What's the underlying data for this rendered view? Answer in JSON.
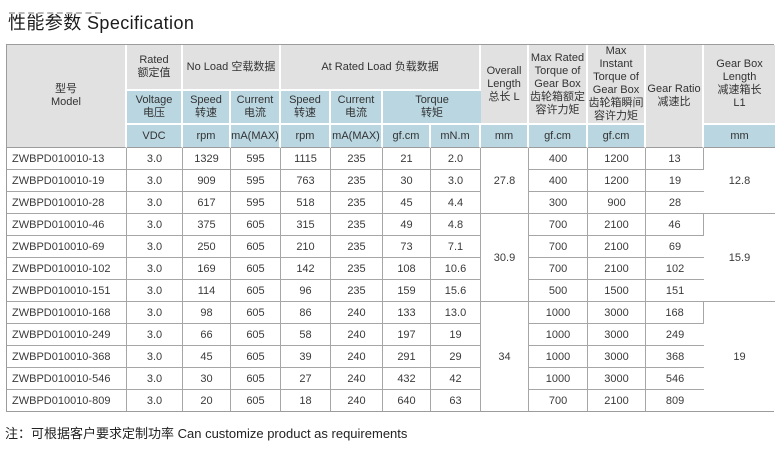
{
  "title": "性能参数 Specification",
  "note": "注：可根据客户要求定制功率  Can customize product as requirements",
  "colors": {
    "header_gray": "#e1e1e1",
    "header_blue": "#b9d6e1",
    "grid_line": "#a6a6a6"
  },
  "table": {
    "header": {
      "model": "型号\nModel",
      "rated": "Rated\n额定值",
      "no_load": "No Load 空载数据",
      "at_rated_load": "At Rated Load 负载数据",
      "voltage": "Voltage\n电压",
      "speed": "Speed\n转速",
      "current": "Current\n电流",
      "torque": "Torque\n转矩",
      "overall_length": "Overall\nLength\n总长 L",
      "max_rated_torque": "Max Rated\nTorque of\nGear Box\n齿轮箱额定\n容许力矩",
      "max_instant_torque": "Max Instant\nTorque of\nGear Box\n齿轮箱瞬间\n容许力矩",
      "gear_ratio": "Gear Ratio\n减速比",
      "gear_box_length": "Gear Box\nLength\n减速箱长\nL1",
      "units": {
        "vdc": "VDC",
        "rpm": "rpm",
        "ma_max": "mA(MAX)",
        "gfcm": "gf.cm",
        "mnm": "mN.m",
        "mm": "mm"
      }
    },
    "columns_order": [
      "model",
      "voltage_vdc",
      "no_load_speed_rpm",
      "no_load_current_ma",
      "rated_speed_rpm",
      "rated_current_ma",
      "torque_gfcm",
      "torque_mnm",
      "max_rated_torque_gfcm",
      "max_instant_torque_gfcm",
      "gear_ratio"
    ],
    "rows": [
      [
        "ZWBPD010010-13",
        "3.0",
        "1329",
        "595",
        "1115",
        "235",
        "21",
        "2.0",
        "400",
        "1200",
        "13"
      ],
      [
        "ZWBPD010010-19",
        "3.0",
        "909",
        "595",
        "763",
        "235",
        "30",
        "3.0",
        "400",
        "1200",
        "19"
      ],
      [
        "ZWBPD010010-28",
        "3.0",
        "617",
        "595",
        "518",
        "235",
        "45",
        "4.4",
        "300",
        "900",
        "28"
      ],
      [
        "ZWBPD010010-46",
        "3.0",
        "375",
        "605",
        "315",
        "235",
        "49",
        "4.8",
        "700",
        "2100",
        "46"
      ],
      [
        "ZWBPD010010-69",
        "3.0",
        "250",
        "605",
        "210",
        "235",
        "73",
        "7.1",
        "700",
        "2100",
        "69"
      ],
      [
        "ZWBPD010010-102",
        "3.0",
        "169",
        "605",
        "142",
        "235",
        "108",
        "10.6",
        "700",
        "2100",
        "102"
      ],
      [
        "ZWBPD010010-151",
        "3.0",
        "114",
        "605",
        "96",
        "235",
        "159",
        "15.6",
        "500",
        "1500",
        "151"
      ],
      [
        "ZWBPD010010-168",
        "3.0",
        "98",
        "605",
        "86",
        "240",
        "133",
        "13.0",
        "1000",
        "3000",
        "168"
      ],
      [
        "ZWBPD010010-249",
        "3.0",
        "66",
        "605",
        "58",
        "240",
        "197",
        "19",
        "1000",
        "3000",
        "249"
      ],
      [
        "ZWBPD010010-368",
        "3.0",
        "45",
        "605",
        "39",
        "240",
        "291",
        "29",
        "1000",
        "3000",
        "368"
      ],
      [
        "ZWBPD010010-546",
        "3.0",
        "30",
        "605",
        "27",
        "240",
        "432",
        "42",
        "1000",
        "3000",
        "546"
      ],
      [
        "ZWBPD010010-809",
        "3.0",
        "20",
        "605",
        "18",
        "240",
        "640",
        "63",
        "700",
        "2100",
        "809"
      ]
    ],
    "groups": [
      {
        "overall_length": "27.8",
        "gear_box_length": "12.8",
        "span": 3
      },
      {
        "overall_length": "30.9",
        "gear_box_length": "15.9",
        "span": 4
      },
      {
        "overall_length": "34",
        "gear_box_length": "19",
        "span": 5
      }
    ]
  }
}
